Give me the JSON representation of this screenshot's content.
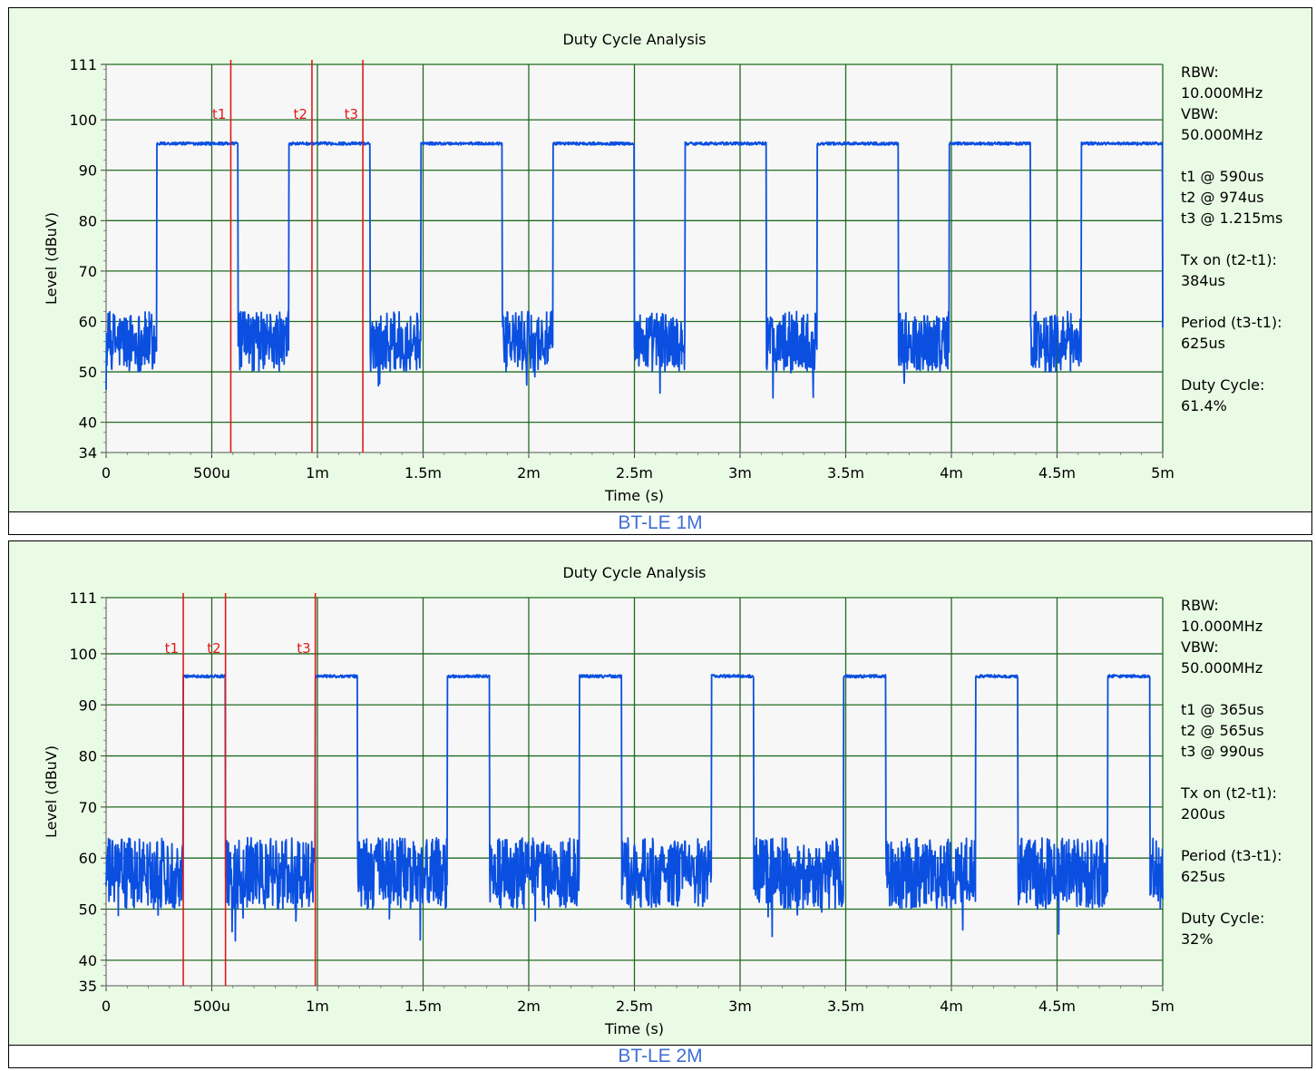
{
  "colors": {
    "panel_bg": "#e9fbe4",
    "plot_bg": "#f7f7f7",
    "grid": "#1f6b1f",
    "trace": "#0a4fe0",
    "marker": "#e01a1a",
    "caption": "#3f6fd6"
  },
  "chart_data": [
    {
      "type": "line",
      "title": "Duty Cycle Analysis",
      "xlabel": "Time (s)",
      "ylabel": "Level (dBuV)",
      "xlim": [
        0,
        0.005
      ],
      "ylim": [
        34,
        111
      ],
      "x_ticks": [
        0,
        0.0005,
        0.001,
        0.0015,
        0.002,
        0.0025,
        0.003,
        0.0035,
        0.004,
        0.0045,
        0.005
      ],
      "x_tick_labels": [
        "0",
        "500u",
        "1m",
        "1.5m",
        "2m",
        "2.5m",
        "3m",
        "3.5m",
        "4m",
        "4.5m",
        "5m"
      ],
      "y_ticks": [
        34,
        40,
        50,
        60,
        70,
        80,
        90,
        100,
        111
      ],
      "y_tick_labels": [
        "34",
        "40",
        "50",
        "60",
        "70",
        "80",
        "90",
        "100",
        "111"
      ],
      "grid": true,
      "series": [
        {
          "high_level": 95.3,
          "low_level": 56,
          "low_noise": 6,
          "period_s": 0.000625,
          "on_duration_s": 0.000384,
          "first_on_s": 0.00024
        }
      ],
      "markers": [
        {
          "label": "t1",
          "x": 0.00059
        },
        {
          "label": "t2",
          "x": 0.000974
        },
        {
          "label": "t3",
          "x": 0.001215
        }
      ],
      "info_lines": [
        "RBW:",
        "10.000MHz",
        "VBW:",
        "50.000MHz",
        "",
        "t1 @ 590us",
        "t2 @ 974us",
        "t3 @ 1.215ms",
        "",
        "Tx on (t2-t1):",
        "384us",
        "",
        "Period (t3-t1):",
        "625us",
        "",
        "Duty Cycle:",
        "61.4%"
      ],
      "caption": "BT-LE 1M"
    },
    {
      "type": "line",
      "title": "Duty Cycle Analysis",
      "xlabel": "Time (s)",
      "ylabel": "Level (dBuV)",
      "xlim": [
        0,
        0.005
      ],
      "ylim": [
        35,
        111
      ],
      "x_ticks": [
        0,
        0.0005,
        0.001,
        0.0015,
        0.002,
        0.0025,
        0.003,
        0.0035,
        0.004,
        0.0045,
        0.005
      ],
      "x_tick_labels": [
        "0",
        "500u",
        "1m",
        "1.5m",
        "2m",
        "2.5m",
        "3m",
        "3.5m",
        "4m",
        "4.5m",
        "5m"
      ],
      "y_ticks": [
        35,
        40,
        50,
        60,
        70,
        80,
        90,
        100,
        111
      ],
      "y_tick_labels": [
        "35",
        "40",
        "50",
        "60",
        "70",
        "80",
        "90",
        "100",
        "111"
      ],
      "grid": true,
      "series": [
        {
          "high_level": 95.6,
          "low_level": 57,
          "low_noise": 7,
          "period_s": 0.000625,
          "on_duration_s": 0.0002,
          "first_on_s": 0.000365
        }
      ],
      "markers": [
        {
          "label": "t1",
          "x": 0.000365
        },
        {
          "label": "t2",
          "x": 0.000565
        },
        {
          "label": "t3",
          "x": 0.00099
        }
      ],
      "info_lines": [
        "RBW:",
        "10.000MHz",
        "VBW:",
        "50.000MHz",
        "",
        "t1 @ 365us",
        "t2 @ 565us",
        "t3 @ 990us",
        "",
        "Tx on (t2-t1):",
        "200us",
        "",
        "Period (t3-t1):",
        "625us",
        "",
        "Duty Cycle:",
        "32%"
      ],
      "caption": "BT-LE 2M"
    }
  ]
}
